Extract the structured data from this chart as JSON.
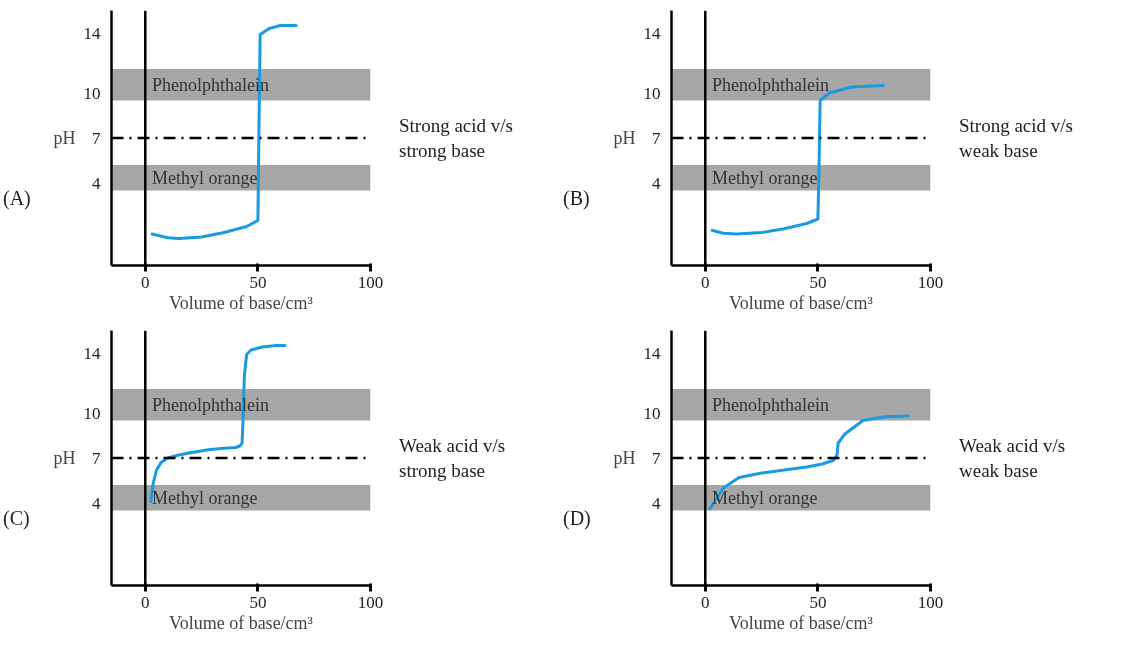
{
  "chart_data": [
    {
      "type": "line",
      "title": "(A)",
      "xlabel": "Volume of base/cm³",
      "ylabel": "pH",
      "xlim": [
        -15,
        100
      ],
      "ylim": [
        -1.5,
        15.5
      ],
      "xticks": [
        0,
        50,
        100
      ],
      "yticks": [
        4,
        7,
        10,
        14
      ],
      "x": [
        3,
        10,
        15,
        25,
        35,
        45,
        50,
        50.5,
        51,
        55,
        60,
        67
      ],
      "series": [
        {
          "color": "#1a9ae0",
          "values": [
            0.6,
            0.35,
            0.3,
            0.4,
            0.7,
            1.1,
            1.5,
            8,
            13.9,
            14.3,
            14.5,
            14.5
          ]
        }
      ],
      "bands": [
        {
          "axis": "y",
          "from": 9.5,
          "to": 11.6,
          "label": "Phenolphthalein",
          "color": "#a6a6a6"
        },
        {
          "axis": "y",
          "from": 3.5,
          "to": 5.2,
          "label": "Methyl orange",
          "color": "#a6a6a6"
        }
      ],
      "ref_lines": [
        {
          "axis": "y",
          "value": 7,
          "color": "#000000",
          "line_style": "dashdot"
        },
        {
          "axis": "x",
          "value": 0,
          "color": "#000000",
          "line_style": "solid"
        }
      ],
      "annotations": [
        "Strong acid v/s\nstrong base"
      ]
    },
    {
      "type": "line",
      "title": "(B)",
      "xlabel": "Volume of base/cm³",
      "ylabel": "pH",
      "xlim": [
        -15,
        100
      ],
      "ylim": [
        -1.5,
        15.5
      ],
      "xticks": [
        0,
        50,
        100
      ],
      "yticks": [
        4,
        7,
        10,
        14
      ],
      "x": [
        3,
        8,
        14,
        25,
        35,
        45,
        50,
        50.5,
        51,
        55,
        65,
        79
      ],
      "series": [
        {
          "color": "#1a9ae0",
          "values": [
            0.85,
            0.65,
            0.6,
            0.7,
            0.95,
            1.3,
            1.6,
            5,
            9.5,
            10.0,
            10.4,
            10.5
          ]
        }
      ],
      "bands": [
        {
          "axis": "y",
          "from": 9.5,
          "to": 11.6,
          "label": "Phenolphthalein",
          "color": "#a6a6a6"
        },
        {
          "axis": "y",
          "from": 3.5,
          "to": 5.2,
          "label": "Methyl orange",
          "color": "#a6a6a6"
        }
      ],
      "ref_lines": [
        {
          "axis": "y",
          "value": 7,
          "color": "#000000",
          "line_style": "dashdot"
        },
        {
          "axis": "x",
          "value": 0,
          "color": "#000000",
          "line_style": "solid"
        }
      ],
      "annotations": [
        "Strong acid v/s\nweak base"
      ]
    },
    {
      "type": "line",
      "title": "(C)",
      "xlabel": "Volume of base/cm³",
      "ylabel": "pH",
      "xlim": [
        -15,
        100
      ],
      "ylim": [
        -1.5,
        15.5
      ],
      "xticks": [
        0,
        50,
        100
      ],
      "yticks": [
        4,
        7,
        10,
        14
      ],
      "x": [
        2.5,
        3.5,
        5,
        7,
        10,
        15,
        20,
        28,
        35,
        40,
        42,
        43,
        43.5,
        44,
        45,
        47,
        52,
        58,
        62
      ],
      "series": [
        {
          "color": "#1a9ae0",
          "values": [
            4.1,
            5.3,
            6.2,
            6.7,
            7.0,
            7.2,
            7.35,
            7.55,
            7.65,
            7.7,
            7.8,
            8.0,
            10,
            12.5,
            13.9,
            14.2,
            14.4,
            14.5,
            14.5
          ]
        }
      ],
      "bands": [
        {
          "axis": "y",
          "from": 9.5,
          "to": 11.6,
          "label": "Phenolphthalein",
          "color": "#a6a6a6"
        },
        {
          "axis": "y",
          "from": 3.5,
          "to": 5.2,
          "label": "Methyl orange",
          "color": "#a6a6a6"
        }
      ],
      "ref_lines": [
        {
          "axis": "y",
          "value": 7,
          "color": "#000000",
          "line_style": "dashdot"
        },
        {
          "axis": "x",
          "value": 0,
          "color": "#000000",
          "line_style": "solid"
        }
      ],
      "annotations": [
        "Weak acid v/s\nstrong base"
      ]
    },
    {
      "type": "line",
      "title": "(D)",
      "xlabel": "Volume of base/cm³",
      "ylabel": "pH",
      "xlim": [
        -15,
        100
      ],
      "ylim": [
        -1.5,
        15.5
      ],
      "xticks": [
        0,
        50,
        100
      ],
      "yticks": [
        4,
        7,
        10,
        14
      ],
      "x": [
        2,
        8,
        15,
        25,
        35,
        45,
        52,
        57,
        58.5,
        59,
        62,
        70,
        80,
        90
      ],
      "series": [
        {
          "color": "#1a9ae0",
          "values": [
            3.6,
            5.0,
            5.7,
            6.0,
            6.2,
            6.4,
            6.6,
            6.85,
            7.2,
            8.0,
            8.6,
            9.5,
            9.75,
            9.8
          ]
        }
      ],
      "bands": [
        {
          "axis": "y",
          "from": 9.5,
          "to": 11.6,
          "label": "Phenolphthalein",
          "color": "#a6a6a6"
        },
        {
          "axis": "y",
          "from": 3.5,
          "to": 5.2,
          "label": "Methyl orange",
          "color": "#a6a6a6"
        }
      ],
      "ref_lines": [
        {
          "axis": "y",
          "value": 7,
          "color": "#000000",
          "line_style": "dashdot"
        },
        {
          "axis": "x",
          "value": 0,
          "color": "#000000",
          "line_style": "solid"
        }
      ],
      "annotations": [
        "Weak acid v/s\nweak base"
      ]
    }
  ]
}
